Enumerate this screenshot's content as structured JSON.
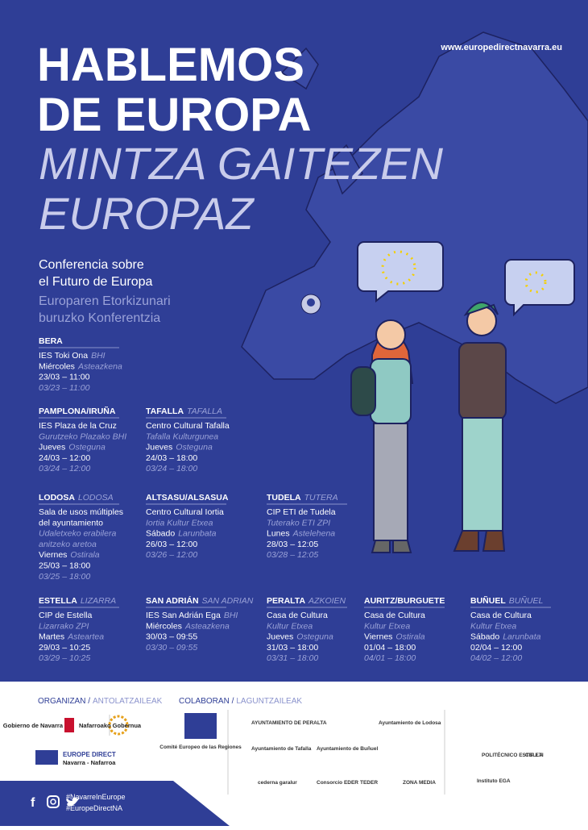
{
  "header": {
    "title_lines": [
      "HABLEMOS",
      "DE EUROPA"
    ],
    "title_alt_lines": [
      "MINTZA GAITEZEN",
      "EUROPAZ"
    ],
    "website": "www.europedirectnavarra.eu",
    "subtitle_lines": [
      "Conferencia sobre",
      "el Futuro de Europa"
    ],
    "subtitle_alt_lines": [
      "Europaren Etorkizunari",
      "buruzko Konferentzia"
    ]
  },
  "event_rows": [
    [
      {
        "city": "BERA",
        "lines": [
          {
            "text": "IES Toki Ona",
            "alt": "BHI"
          },
          {
            "text": "Miércoles",
            "alt": "Asteazkena"
          },
          {
            "text": "23/03 – 11:00"
          },
          {
            "alt": "03/23 – 11:00"
          }
        ]
      }
    ],
    [
      {
        "city": "PAMPLONA/IRUÑA",
        "lines": [
          {
            "text": "IES Plaza de la Cruz"
          },
          {
            "alt": "Gurutzeko Plazako BHI"
          },
          {
            "text": "Jueves",
            "alt": "Osteguna"
          },
          {
            "text": "24/03 – 12:00"
          },
          {
            "alt": "03/24 – 12:00"
          }
        ]
      },
      {
        "city": "TAFALLA",
        "city_alt": "TAFALLA",
        "lines": [
          {
            "text": "Centro Cultural Tafalla"
          },
          {
            "alt": "Tafalla Kulturgunea"
          },
          {
            "text": "Jueves",
            "alt": "Osteguna"
          },
          {
            "text": "24/03 – 18:00"
          },
          {
            "alt": "03/24 – 18:00"
          }
        ]
      }
    ],
    [
      {
        "city": "LODOSA",
        "city_alt": "LODOSA",
        "lines": [
          {
            "text": "Sala de usos múltiples"
          },
          {
            "text": "del ayuntamiento"
          },
          {
            "alt": "Udaletxeko erabilera"
          },
          {
            "alt": "anitzeko aretoa"
          },
          {
            "text": "Viernes",
            "alt": "Ostirala"
          },
          {
            "text": "25/03 – 18:00"
          },
          {
            "alt": "03/25 – 18:00"
          }
        ]
      },
      {
        "city": "ALTSASU/ALSASUA",
        "lines": [
          {
            "text": "Centro Cultural Iortia"
          },
          {
            "alt": "Iortia Kultur Etxea"
          },
          {
            "text": "Sábado",
            "alt": "Larunbata"
          },
          {
            "text": "26/03 – 12:00"
          },
          {
            "alt": "03/26 – 12:00"
          }
        ]
      },
      {
        "city": "TUDELA",
        "city_alt": "TUTERA",
        "lines": [
          {
            "text": "CIP ETI de Tudela"
          },
          {
            "alt": "Tuterako  ETI ZPI"
          },
          {
            "text": "Lunes",
            "alt": "Astelehena"
          },
          {
            "text": "28/03 – 12:05"
          },
          {
            "alt": "03/28 – 12:05"
          }
        ]
      }
    ],
    [
      {
        "city": "ESTELLA",
        "city_alt": "LIZARRA",
        "lines": [
          {
            "text": "CIP de Estella"
          },
          {
            "alt": "Lizarrako ZPI"
          },
          {
            "text": "Martes",
            "alt": "Asteartea"
          },
          {
            "text": "29/03 – 10:25"
          },
          {
            "alt": "03/29 – 10:25"
          }
        ]
      },
      {
        "city": "SAN ADRIÁN",
        "city_alt": "SAN ADRIAN",
        "lines": [
          {
            "text": "IES San Adrián Ega",
            "alt": "BHI"
          },
          {
            "text": "Miércoles",
            "alt": "Asteazkena"
          },
          {
            "text": "30/03 – 09:55"
          },
          {
            "alt": "03/30 – 09:55"
          }
        ]
      },
      {
        "city": "PERALTA",
        "city_alt": "AZKOIEN",
        "lines": [
          {
            "text": "Casa de Cultura"
          },
          {
            "alt": "Kultur Etxea"
          },
          {
            "text": "Jueves",
            "alt": "Osteguna"
          },
          {
            "text": "31/03 – 18:00"
          },
          {
            "alt": "03/31 – 18:00"
          }
        ]
      },
      {
        "city": "AURITZ/BURGUETE",
        "lines": [
          {
            "text": "Casa de Cultura"
          },
          {
            "alt": "Kultur Etxea"
          },
          {
            "text": "Viernes",
            "alt": "Ostirala"
          },
          {
            "text": "01/04 – 18:00"
          },
          {
            "alt": "04/01 – 18:00"
          }
        ]
      },
      {
        "city": "BUÑUEL",
        "city_alt": "BUÑUEL",
        "lines": [
          {
            "text": "Casa de Cultura"
          },
          {
            "alt": "Kultur Etxea"
          },
          {
            "text": "Sábado",
            "alt": "Larunbata"
          },
          {
            "text": "02/04 – 12:00"
          },
          {
            "alt": "04/02 – 12:00"
          }
        ]
      }
    ]
  ],
  "footer": {
    "organizers_label": {
      "main": "ORGANIZAN /",
      "alt": "ANTOLATZAILEAK"
    },
    "collaborators_label": {
      "main": "COLABORAN /",
      "alt": "LAGUNTZAILEAK"
    },
    "organizers": [
      "Gobierno de Navarra",
      "Nafarroako Gobernua",
      "EUROPE DIRECT",
      "Navarra - Nafarroa"
    ],
    "collaborators": [
      "Comité Europeo de las Regiones",
      "AYUNTAMIENTO DE PERALTA",
      "Ayuntamiento de Tafalla",
      "Ayuntamiento de Buñuel",
      "Ayuntamiento de Lodosa",
      "cederna garalur",
      "Consorcio EDER",
      "TEDER",
      "ZONA MEDIA",
      "POLITÉCNICO ESTELLA",
      "Instituto EGA",
      "CIP ETI"
    ],
    "hashtags": [
      "#NavarreInEurope",
      "#EuropeDirectNA"
    ]
  }
}
